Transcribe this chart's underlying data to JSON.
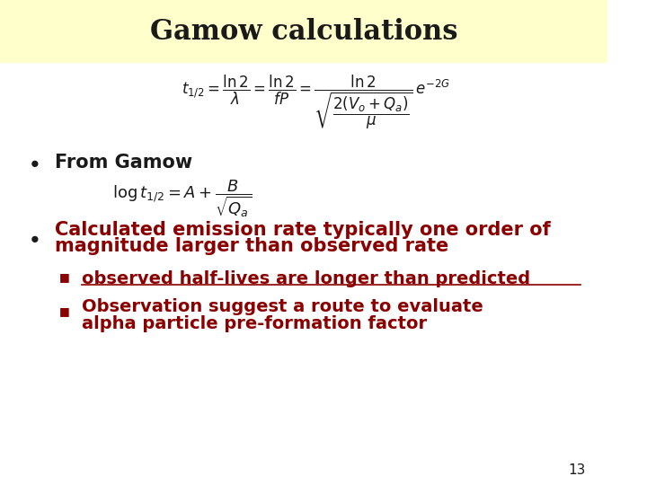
{
  "title": "Gamow calculations",
  "title_color": "#1a1a1a",
  "title_bg_color": "#ffffcc",
  "bg_color": "#ffffff",
  "dark_red": "#8b0000",
  "black": "#1a1a1a",
  "bullet1": "From Gamow",
  "bullet2_line1": "Calculated emission rate typically one order of",
  "bullet2_line2": "magnitude larger than observed rate",
  "sub1": "observed half-lives are longer than predicted",
  "sub2_line1": "Observation suggest a route to evaluate",
  "sub2_line2": "alpha particle pre-formation factor",
  "page_num": "13",
  "font_size_title": 22,
  "font_size_bullet": 15,
  "font_size_sub": 14
}
